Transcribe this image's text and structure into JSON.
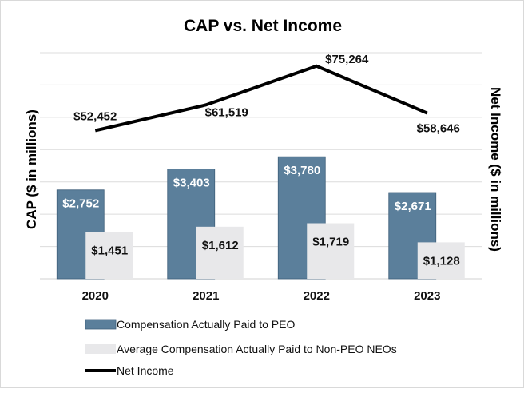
{
  "chart_data": {
    "type": "bar",
    "title": "CAP vs. Net Income",
    "ylabel": "CAP ($ in millions)",
    "y2label": "Net Income ($ in millions)",
    "categories": [
      "2020",
      "2021",
      "2022",
      "2023"
    ],
    "ylim": [
      0,
      7000
    ],
    "y2lim": [
      0,
      80000
    ],
    "grid": true,
    "legend_position": "bottom",
    "series": [
      {
        "name": "Compensation Actually Paid to PEO",
        "type": "bar",
        "axis": "left",
        "color": "#5b7f9b",
        "values": [
          2752,
          3403,
          3780,
          2671
        ],
        "labels": [
          "$2,752",
          "$3,403",
          "$3,780",
          "$2,671"
        ]
      },
      {
        "name": "Average Compensation Actually Paid to Non-PEO NEOs",
        "type": "bar",
        "axis": "left",
        "color": "#e8e8ea",
        "values": [
          1451,
          1612,
          1719,
          1128
        ],
        "labels": [
          "$1,451",
          "$1,612",
          "$1,719",
          "$1,128"
        ]
      },
      {
        "name": "Net Income",
        "type": "line",
        "axis": "right",
        "color": "#000000",
        "values": [
          52452,
          61519,
          75264,
          58646
        ],
        "labels": [
          "$52,452",
          "$61,519",
          "$75,264",
          "$58,646"
        ]
      }
    ]
  }
}
